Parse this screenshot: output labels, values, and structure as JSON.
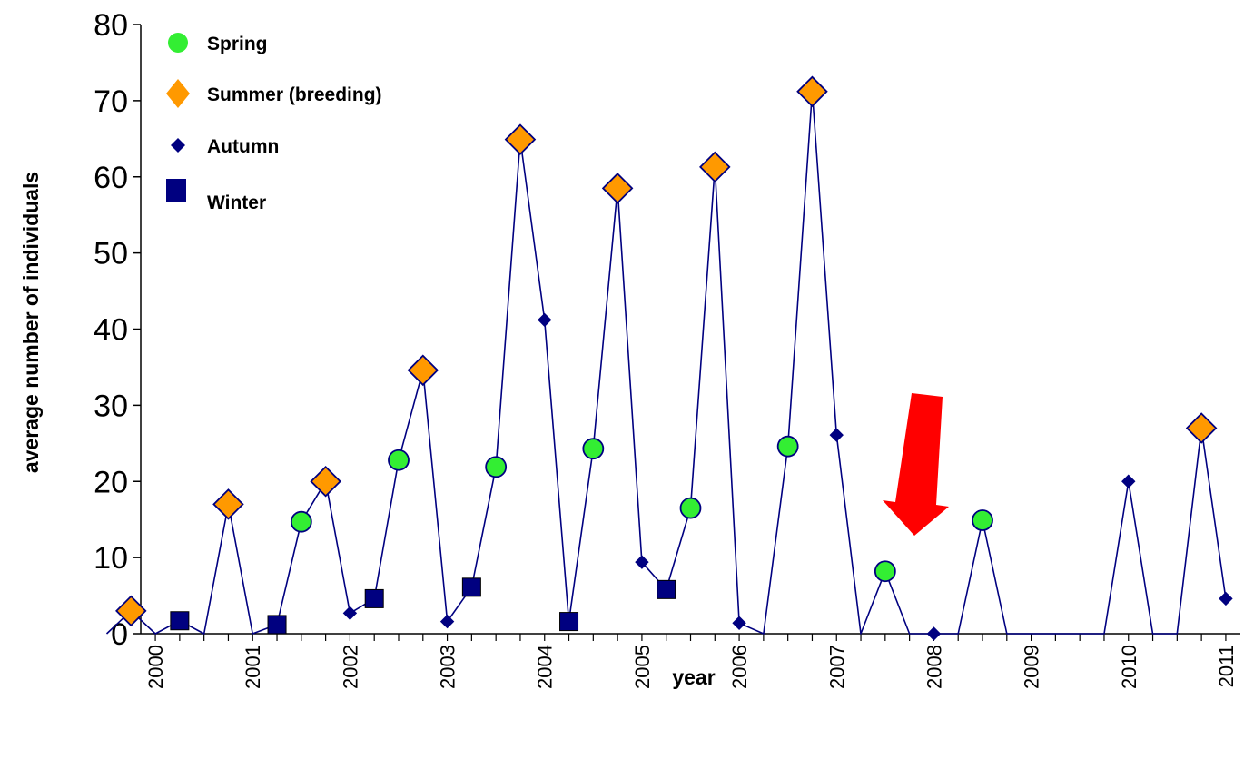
{
  "chart_data": {
    "type": "line",
    "title": "",
    "xlabel": "year",
    "ylabel": "average number of individuals",
    "ylim": [
      0,
      80
    ],
    "yticks": [
      "0",
      "10",
      "20",
      "30",
      "40",
      "50",
      "60",
      "70",
      "80"
    ],
    "xlim": [
      1999.85,
      2011.15
    ],
    "xticks": [
      "2000",
      "2001",
      "2002",
      "2003",
      "2004",
      "2005",
      "2006",
      "2007",
      "2008",
      "2009",
      "2010",
      "2011"
    ],
    "grid": false,
    "legend_position": "top-left",
    "line_color": "#000080",
    "series": [
      {
        "name": "Spring",
        "marker": "circle",
        "color": "#33ee33",
        "points": [
          [
            2001.5,
            14.7
          ],
          [
            2002.5,
            22.8
          ],
          [
            2003.5,
            21.9
          ],
          [
            2004.5,
            24.3
          ],
          [
            2005.5,
            16.5
          ],
          [
            2006.5,
            24.6
          ],
          [
            2007.5,
            8.2
          ],
          [
            2008.5,
            14.9
          ]
        ]
      },
      {
        "name": "Summer (breeding)",
        "marker": "diamond",
        "color": "#ff9900",
        "points": [
          [
            1999.75,
            3.0
          ],
          [
            2000.75,
            17.0
          ],
          [
            2001.75,
            20.0
          ],
          [
            2002.75,
            34.6
          ],
          [
            2003.75,
            64.9
          ],
          [
            2004.75,
            58.5
          ],
          [
            2005.75,
            61.3
          ],
          [
            2006.75,
            71.2
          ],
          [
            2010.75,
            27.0
          ]
        ]
      },
      {
        "name": "Autumn",
        "marker": "small-diamond",
        "color": "#000080",
        "points": [
          [
            2002.0,
            2.7
          ],
          [
            2003.0,
            1.6
          ],
          [
            2004.0,
            41.2
          ],
          [
            2005.0,
            9.4
          ],
          [
            2006.0,
            1.4
          ],
          [
            2007.0,
            26.1
          ],
          [
            2008.0,
            0.0
          ],
          [
            2010.0,
            20.0
          ],
          [
            2011.0,
            4.6
          ]
        ]
      },
      {
        "name": "Winter",
        "marker": "square",
        "color": "#000080",
        "points": [
          [
            2000.25,
            1.7
          ],
          [
            2001.25,
            1.2
          ],
          [
            2002.25,
            4.6
          ],
          [
            2003.25,
            6.1
          ],
          [
            2004.25,
            1.6
          ],
          [
            2005.25,
            5.8
          ]
        ]
      }
    ],
    "line": [
      [
        1999.5,
        0
      ],
      [
        1999.75,
        3.0
      ],
      [
        2000.0,
        0
      ],
      [
        2000.25,
        1.7
      ],
      [
        2000.5,
        0
      ],
      [
        2000.75,
        17.0
      ],
      [
        2001.0,
        0
      ],
      [
        2001.25,
        1.2
      ],
      [
        2001.5,
        14.7
      ],
      [
        2001.75,
        20.0
      ],
      [
        2002.0,
        2.7
      ],
      [
        2002.25,
        4.6
      ],
      [
        2002.5,
        22.8
      ],
      [
        2002.75,
        34.6
      ],
      [
        2003.0,
        1.6
      ],
      [
        2003.25,
        6.1
      ],
      [
        2003.5,
        21.9
      ],
      [
        2003.75,
        64.9
      ],
      [
        2004.0,
        41.2
      ],
      [
        2004.25,
        1.6
      ],
      [
        2004.5,
        24.3
      ],
      [
        2004.75,
        58.5
      ],
      [
        2005.0,
        9.4
      ],
      [
        2005.25,
        5.8
      ],
      [
        2005.5,
        16.5
      ],
      [
        2005.75,
        61.3
      ],
      [
        2006.0,
        1.4
      ],
      [
        2006.25,
        0
      ],
      [
        2006.5,
        24.6
      ],
      [
        2006.75,
        71.2
      ],
      [
        2007.0,
        26.1
      ],
      [
        2007.25,
        0
      ],
      [
        2007.5,
        8.2
      ],
      [
        2007.75,
        0
      ],
      [
        2008.0,
        0.0
      ],
      [
        2008.25,
        0
      ],
      [
        2008.5,
        14.9
      ],
      [
        2008.75,
        0
      ],
      [
        2009.0,
        0
      ],
      [
        2009.25,
        0
      ],
      [
        2009.5,
        0
      ],
      [
        2009.75,
        0
      ],
      [
        2010.0,
        20.0
      ],
      [
        2010.25,
        0
      ],
      [
        2010.5,
        0
      ],
      [
        2010.75,
        27.0
      ],
      [
        2011.0,
        4.6
      ]
    ],
    "annotations": [
      {
        "type": "arrow",
        "color": "#ff0000",
        "points_to": [
          2007.5,
          8.2
        ]
      }
    ]
  }
}
